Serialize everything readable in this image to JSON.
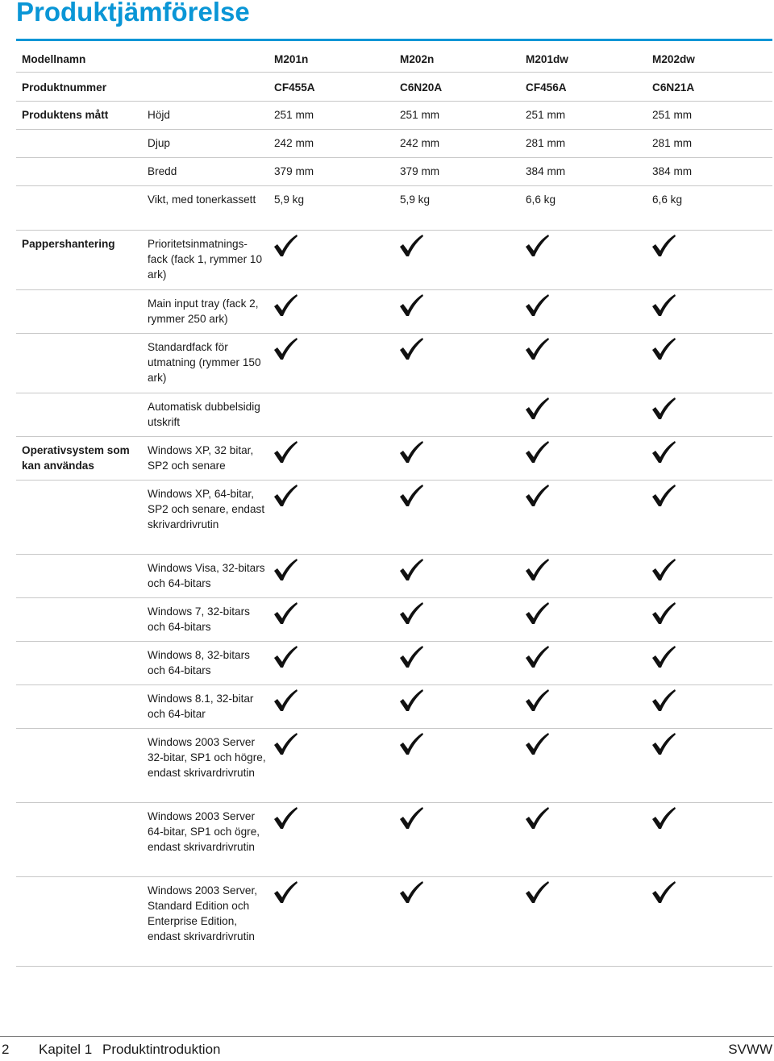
{
  "title": "Produktjämförelse",
  "header": {
    "model_label": "Modellnamn",
    "models": [
      "M201n",
      "M202n",
      "M201dw",
      "M202dw"
    ],
    "product_label": "Produktnummer",
    "products": [
      "CF455A",
      "C6N20A",
      "CF456A",
      "C6N21A"
    ]
  },
  "dimensions": {
    "label": "Produktens mått",
    "rows": [
      {
        "label": "Höjd",
        "values": [
          "251 mm",
          "251 mm",
          "251 mm",
          "251 mm"
        ]
      },
      {
        "label": "Djup",
        "values": [
          "242 mm",
          "242 mm",
          "281 mm",
          "281 mm"
        ]
      },
      {
        "label": "Bredd",
        "values": [
          "379 mm",
          "379 mm",
          "384 mm",
          "384 mm"
        ]
      },
      {
        "label": "Vikt, med tonerkassett",
        "values": [
          "5,9 kg",
          "5,9 kg",
          "6,6 kg",
          "6,6 kg"
        ]
      }
    ]
  },
  "paper": {
    "label": "Pappershantering",
    "rows": [
      {
        "label": "Prioritetsinmatnings-fack (fack 1, rymmer 10 ark)",
        "checks": [
          true,
          true,
          true,
          true
        ]
      },
      {
        "label": "Main input tray (fack 2, rymmer 250 ark)",
        "checks": [
          true,
          true,
          true,
          true
        ]
      },
      {
        "label": "Standardfack för utmatning (rymmer 150 ark)",
        "checks": [
          true,
          true,
          true,
          true
        ]
      },
      {
        "label": "Automatisk dubbelsidig utskrift",
        "checks": [
          false,
          false,
          true,
          true
        ]
      }
    ]
  },
  "os": {
    "label": "Operativsystem som kan användas",
    "rows": [
      {
        "label": "Windows XP, 32 bitar, SP2 och senare",
        "checks": [
          true,
          true,
          true,
          true
        ]
      },
      {
        "label": "Windows XP, 64-bitar, SP2 och senare, endast skrivardrivrutin",
        "checks": [
          true,
          true,
          true,
          true
        ]
      },
      {
        "label": "Windows Visa, 32-bitars och 64-bitars",
        "checks": [
          true,
          true,
          true,
          true
        ]
      },
      {
        "label": "Windows 7, 32-bitars och 64-bitars",
        "checks": [
          true,
          true,
          true,
          true
        ]
      },
      {
        "label": "Windows 8, 32-bitars och 64-bitars",
        "checks": [
          true,
          true,
          true,
          true
        ]
      },
      {
        "label": "Windows 8.1, 32-bitar och 64-bitar",
        "checks": [
          true,
          true,
          true,
          true
        ]
      },
      {
        "label": "Windows 2003 Server 32-bitar, SP1 och högre, endast skrivardrivrutin",
        "checks": [
          true,
          true,
          true,
          true
        ]
      },
      {
        "label": "Windows 2003 Server 64-bitar, SP1 och ögre, endast skrivardrivrutin",
        "checks": [
          true,
          true,
          true,
          true
        ]
      },
      {
        "label": "Windows 2003 Server, Standard Edition och Enterprise Edition, endast skrivardrivrutin",
        "checks": [
          true,
          true,
          true,
          true
        ]
      }
    ]
  },
  "footer": {
    "page_number": "2",
    "chapter": "Kapitel 1",
    "section": "Produktintroduktion",
    "right": "SVWW"
  },
  "colors": {
    "accent": "#0a96d6",
    "rule": "#c8c8c8"
  },
  "check_icon": "check-mark-icon"
}
